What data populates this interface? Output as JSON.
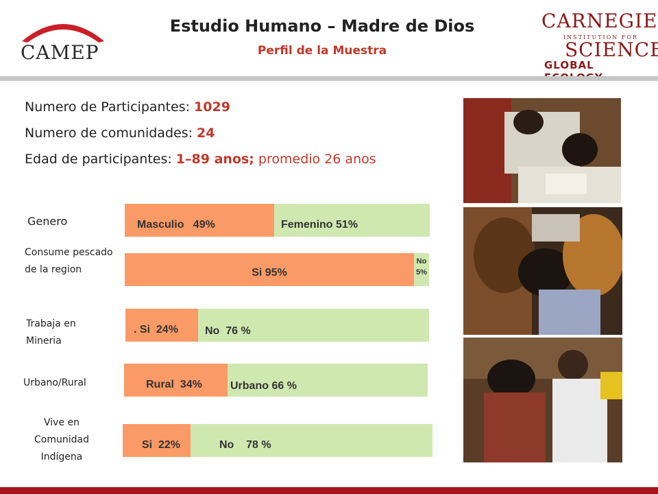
{
  "header": {
    "logo_left_text": "CAMEP",
    "title": "Estudio Humano – Madre de Dios",
    "subtitle": "Perfil de la Muestra",
    "logo_right": {
      "line1": "CARNEGIE",
      "line2": "INSTITUTION FOR",
      "line3": "SCIENCE",
      "line4": "GLOBAL ECOLOGY"
    }
  },
  "stats": {
    "participants_label": "Numero de Participantes: ",
    "participants_value": "1029",
    "communities_label": "Numero de comunidades: ",
    "communities_value": "24",
    "age_label": "Edad de participantes:  ",
    "age_range": "1–89 anos;",
    "age_mean": " promedio 26 anos"
  },
  "colors": {
    "accent_red": "#c0392b",
    "segment_orange": "#fa9a66",
    "segment_green": "#cfe8b0",
    "bottom_rule": "#a8141b"
  },
  "chart_data": {
    "type": "bar",
    "orientation": "horizontal-stacked-100",
    "rows": [
      {
        "category": "Genero",
        "a_label": "Masculio   49%",
        "a_value": 49,
        "b_label": "Femenino 51%",
        "b_value": 51
      },
      {
        "category": "Consume pescado de la region",
        "a_label": "Si 95%",
        "a_value": 95,
        "b_label": "No 5%",
        "b_value": 5
      },
      {
        "category": "Trabaja en Mineria",
        "a_label": ". Si  24%",
        "a_value": 24,
        "b_label": "No  76 %",
        "b_value": 76
      },
      {
        "category": "Urbano/Rural",
        "a_label": "Rural  34%",
        "a_value": 34,
        "b_label": "Urbano 66 %",
        "b_value": 66
      },
      {
        "category": "Vive en Comunidad Indígena",
        "a_label": "Si  22%",
        "a_value": 22,
        "b_label": "No    78 %",
        "b_value": 78
      }
    ]
  },
  "photos": [
    "photo-1",
    "photo-2",
    "photo-3"
  ]
}
